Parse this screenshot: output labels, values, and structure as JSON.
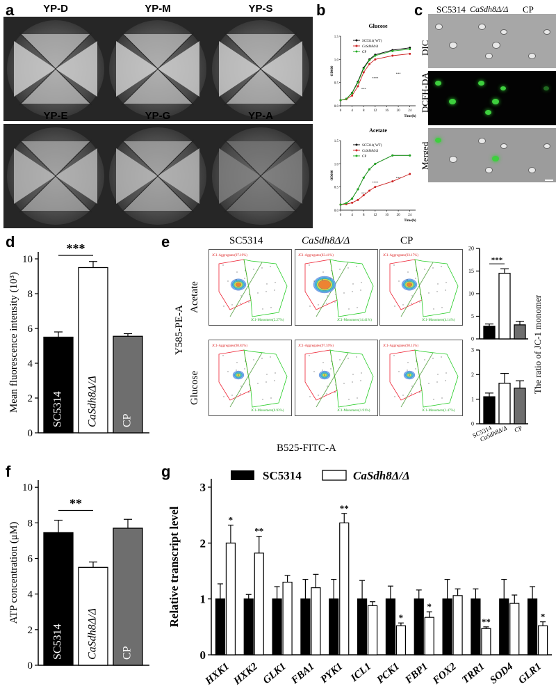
{
  "panel_labels": {
    "a": "a",
    "b": "b",
    "c": "c",
    "d": "d",
    "e": "e",
    "f": "f",
    "g": "g"
  },
  "panel_a": {
    "plates": [
      "YP-D",
      "YP-M",
      "YP-S",
      "YP-E",
      "YP-G",
      "YP-A"
    ]
  },
  "panel_b": {
    "charts": [
      {
        "title": "Glucose",
        "ylabel": "OD600",
        "xlabel": "Time(h)",
        "legend": [
          "SC5314( WT)",
          "CaSdh8Δ/Δ",
          "CP"
        ],
        "x": [
          0,
          2,
          4,
          6,
          8,
          10,
          12,
          18,
          24
        ],
        "series": [
          {
            "name": "SC5314( WT)",
            "color": "#000000",
            "values": [
              0.12,
              0.15,
              0.28,
              0.52,
              0.82,
              1.0,
              1.1,
              1.2,
              1.25
            ]
          },
          {
            "name": "CaSdh8Δ/Δ",
            "color": "#cc2222",
            "values": [
              0.12,
              0.14,
              0.22,
              0.42,
              0.72,
              0.9,
              1.0,
              1.08,
              1.12
            ]
          },
          {
            "name": "CP",
            "color": "#22aa22",
            "values": [
              0.12,
              0.15,
              0.27,
              0.5,
              0.8,
              0.98,
              1.08,
              1.18,
              1.22
            ]
          }
        ],
        "xticks": [
          "0",
          "4",
          "8",
          "12",
          "16",
          "20",
          "24"
        ],
        "yticks": [
          "0.0",
          "0.5",
          "1.0",
          "1.5"
        ]
      },
      {
        "title": "Acetate",
        "ylabel": "OD600",
        "xlabel": "Time(h)",
        "legend": [
          "SC5314( WT)",
          "CaSdh8Δ/Δ",
          "CP"
        ],
        "x": [
          0,
          2,
          4,
          6,
          8,
          10,
          12,
          18,
          24
        ],
        "series": [
          {
            "name": "SC5314( WT)",
            "color": "#000000",
            "values": [
              0.12,
              0.15,
              0.25,
              0.45,
              0.7,
              0.88,
              1.0,
              1.18,
              1.18
            ]
          },
          {
            "name": "CaSdh8Δ/Δ",
            "color": "#cc2222",
            "values": [
              0.12,
              0.13,
              0.16,
              0.22,
              0.32,
              0.42,
              0.5,
              0.62,
              0.78
            ]
          },
          {
            "name": "CP",
            "color": "#22aa22",
            "values": [
              0.12,
              0.15,
              0.25,
              0.45,
              0.7,
              0.88,
              1.0,
              1.18,
              1.18
            ]
          }
        ],
        "xticks": [
          "0",
          "4",
          "8",
          "12",
          "16",
          "20",
          "24"
        ],
        "yticks": [
          "0.0",
          "0.5",
          "1.0",
          "1.5"
        ]
      }
    ],
    "sig_marks": [
      "***",
      "****",
      "***"
    ]
  },
  "panel_c": {
    "columns": [
      "SC5314",
      "CaSdh8Δ/Δ",
      "CP"
    ],
    "rows": [
      "DIC",
      "DCFH-DA",
      "Merged"
    ]
  },
  "chart_data": [
    {
      "type": "bar",
      "panel": "d",
      "ylabel": "Mean fluorescence intensity (10³)",
      "categories": [
        "SC5314",
        "CaSdh8Δ/Δ",
        "CP"
      ],
      "values": [
        5.5,
        9.5,
        5.55
      ],
      "errors": [
        0.3,
        0.35,
        0.15
      ],
      "colors": [
        "#000000",
        "#ffffff",
        "#6e6e6e"
      ],
      "ylim": [
        0,
        10
      ],
      "yticks": [
        "0",
        "2",
        "4",
        "6",
        "8",
        "10"
      ],
      "significance": "***"
    },
    {
      "type": "bar",
      "panel": "f",
      "ylabel": "ATP concentration (μM)",
      "categories": [
        "SC5314",
        "CaSdh8Δ/Δ",
        "CP"
      ],
      "values": [
        7.45,
        5.5,
        7.7
      ],
      "errors": [
        0.7,
        0.3,
        0.5
      ],
      "colors": [
        "#000000",
        "#ffffff",
        "#6e6e6e"
      ],
      "ylim": [
        0,
        10
      ],
      "yticks": [
        "0",
        "2",
        "4",
        "6",
        "8",
        "10"
      ],
      "significance": "**"
    },
    {
      "type": "bar",
      "panel": "g",
      "ylabel": "Relative transcript level",
      "categories": [
        "HXK1",
        "HXK2",
        "GLK1",
        "FBA1",
        "PYK1",
        "ICL1",
        "PCK1",
        "FBP1",
        "FOX2",
        "TRR1",
        "SOD4",
        "GLR1"
      ],
      "series": [
        {
          "name": "SC5314",
          "values": [
            1,
            1,
            1,
            1,
            1,
            1,
            1,
            1,
            1,
            1,
            1,
            1
          ],
          "errors": [
            0.27,
            0.08,
            0.22,
            0.35,
            0.35,
            0.33,
            0.23,
            0.16,
            0.35,
            0.18,
            0.35,
            0.22
          ]
        },
        {
          "name": "CaSdh8Δ/Δ",
          "values": [
            2.0,
            1.82,
            1.3,
            1.2,
            2.36,
            0.88,
            0.52,
            0.67,
            1.06,
            0.47,
            0.92,
            0.52
          ],
          "errors": [
            0.32,
            0.3,
            0.12,
            0.24,
            0.17,
            0.07,
            0.05,
            0.1,
            0.12,
            0.03,
            0.15,
            0.07
          ]
        }
      ],
      "significance": [
        "*",
        "**",
        "",
        "",
        "**",
        "",
        "*",
        "*",
        "",
        "**",
        "",
        "*"
      ],
      "ylim": [
        0,
        3
      ],
      "yticks": [
        "0",
        "1",
        "2",
        "3"
      ]
    },
    {
      "type": "bar",
      "panel": "e-acetate",
      "ylabel": "The ratio of JC-1 monomer",
      "categories": [
        "SC5314",
        "CaSdh8Δ/Δ",
        "CP"
      ],
      "values": [
        2.8,
        14.5,
        3.1
      ],
      "errors": [
        0.5,
        1.0,
        0.8
      ],
      "colors": [
        "#000000",
        "#ffffff",
        "#6e6e6e"
      ],
      "ylim": [
        0,
        20
      ],
      "yticks": [
        "0",
        "5",
        "10",
        "15",
        "20"
      ],
      "significance": "***"
    },
    {
      "type": "bar",
      "panel": "e-glucose",
      "categories": [
        "SC5314",
        "CaSdh8Δ/Δ",
        "CP"
      ],
      "values": [
        1.1,
        1.65,
        1.45
      ],
      "errors": [
        0.15,
        0.4,
        0.3
      ],
      "colors": [
        "#000000",
        "#ffffff",
        "#6e6e6e"
      ],
      "ylim": [
        0,
        3
      ],
      "yticks": [
        "0",
        "1",
        "2",
        "3"
      ]
    }
  ],
  "panel_e": {
    "columns": [
      "SC5314",
      "CaSdh8Δ/Δ",
      "CP"
    ],
    "rows": [
      "Acetate",
      "Glucose"
    ],
    "ylabel": "Y585-PE-A",
    "xlabel": "B525-FITC-A",
    "aggregates": [
      [
        "JC1-Aggregates(97.19%)",
        "JC1-Aggregates(83.41%)",
        "JC1-Aggregates(93.17%)"
      ],
      [
        "JC1-Aggregates(98.83%)",
        "JC1-Aggregates(97.59%)",
        "JC1-Aggregates(98.15%)"
      ]
    ],
    "monomers": [
      [
        "JC1-Monomers(2.27%)",
        "JC1-Monomers(14.41%)",
        "JC1-Monomers(4.14%)"
      ],
      [
        "JC1-Monomers(0.93%)",
        "JC1-Monomers(1.91%)",
        "JC1-Monomers(1.47%)"
      ]
    ],
    "bar_categories": [
      "SC5314",
      "CaSdh8Δ/Δ",
      "CP"
    ]
  },
  "panel_g_legend": [
    "SC5314",
    "CaSdh8Δ/Δ"
  ]
}
